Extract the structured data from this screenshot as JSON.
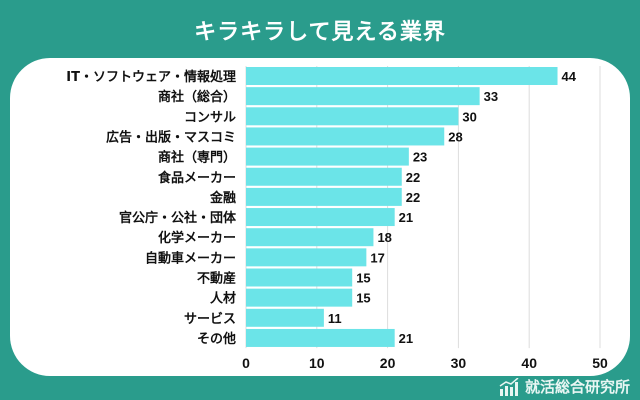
{
  "title": "キラキラして見える業界",
  "logo_text": "就活総合研究所",
  "colors": {
    "background": "#2a9c8c",
    "bar": "#6be4e8",
    "panel": "#ffffff"
  },
  "chart_data": {
    "type": "bar",
    "orientation": "horizontal",
    "title": "キラキラして見える業界",
    "categories": [
      "IT・ソフトウェア・情報処理",
      "商社（総合）",
      "コンサル",
      "広告・出版・マスコミ",
      "商社（専門）",
      "食品メーカー",
      "金融",
      "官公庁・公社・団体",
      "化学メーカー",
      "自動車メーカー",
      "不動産",
      "人材",
      "サービス",
      "その他"
    ],
    "values": [
      44,
      33,
      30,
      28,
      23,
      22,
      22,
      21,
      18,
      17,
      15,
      15,
      11,
      21
    ],
    "xlim": [
      0,
      50
    ],
    "xticks": [
      0,
      10,
      20,
      30,
      40,
      50
    ],
    "grid": true,
    "xlabel": "",
    "ylabel": ""
  }
}
